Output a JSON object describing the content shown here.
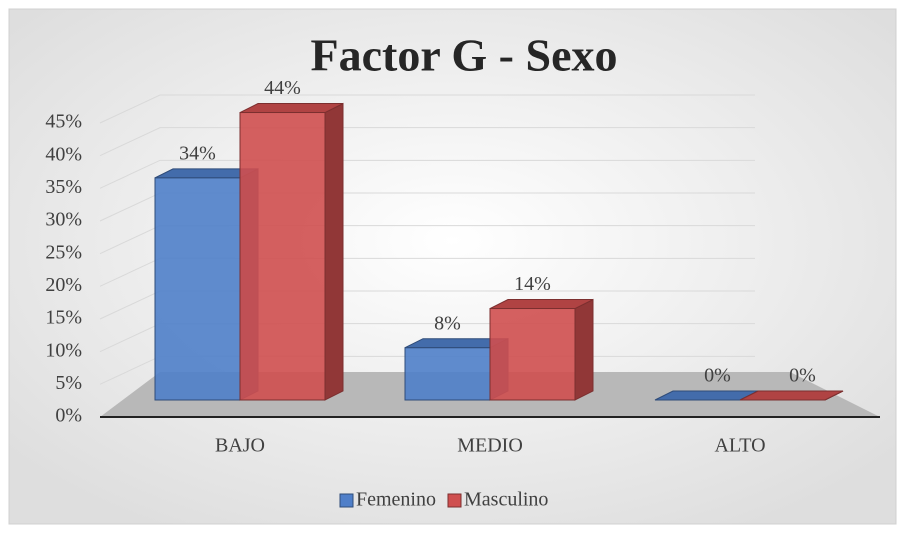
{
  "chart_data": {
    "type": "bar",
    "title": "Factor G - Sexo",
    "categories": [
      "BAJO",
      "MEDIO",
      "ALTO"
    ],
    "series": [
      {
        "name": "Femenino",
        "color": "#4f7fc9",
        "values": [
          34,
          8,
          0
        ],
        "value_labels": [
          "34%",
          "8%",
          "0%"
        ]
      },
      {
        "name": "Masculino",
        "color": "#cf4f4f",
        "values": [
          44,
          14,
          0
        ],
        "value_labels": [
          "44%",
          "14%",
          "0%"
        ]
      }
    ],
    "ylim": [
      0,
      45
    ],
    "yticks": [
      {
        "value": 0,
        "label": "0%"
      },
      {
        "value": 5,
        "label": "5%"
      },
      {
        "value": 10,
        "label": "10%"
      },
      {
        "value": 15,
        "label": "15%"
      },
      {
        "value": 20,
        "label": "20%"
      },
      {
        "value": 25,
        "label": "25%"
      },
      {
        "value": 30,
        "label": "30%"
      },
      {
        "value": 35,
        "label": "35%"
      },
      {
        "value": 40,
        "label": "40%"
      },
      {
        "value": 45,
        "label": "45%"
      }
    ],
    "grid": true,
    "legend": "bottom"
  }
}
